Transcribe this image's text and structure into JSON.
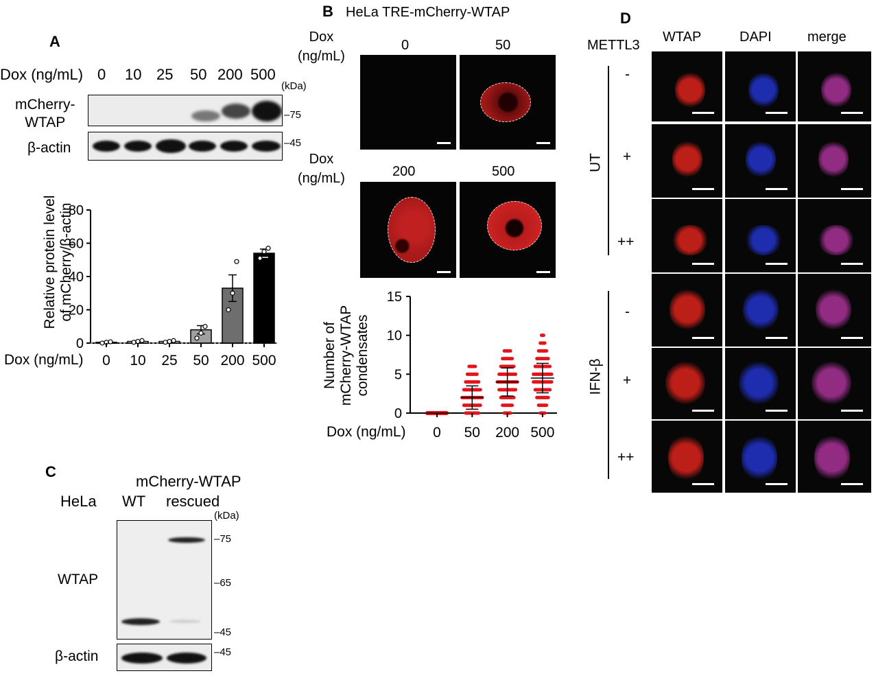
{
  "panelA": {
    "label": "A",
    "dox_label": "Dox (ng/mL)",
    "doses": [
      "0",
      "10",
      "25",
      "50",
      "200",
      "500"
    ],
    "kda_label": "(kDa)",
    "rows": [
      {
        "label": "mCherry-\nWTAP",
        "marker": "75"
      },
      {
        "label": "β-actin",
        "marker": "45"
      }
    ]
  },
  "panelB": {
    "label": "B",
    "title": "HeLa TRE-mCherry-WTAP",
    "dox_label": "Dox\n(ng/mL)",
    "tiles": [
      "0",
      "50",
      "200",
      "500"
    ],
    "dox_axis_label": "Dox (ng/mL)"
  },
  "panelC": {
    "label": "C",
    "header": "mCherry-WTAP",
    "cell_line": "HeLa",
    "lanes": [
      "WT",
      "rescued"
    ],
    "kda_label": "(kDa)",
    "markers": [
      "75",
      "65",
      "45"
    ],
    "row_labels": [
      "WTAP",
      "β-actin"
    ],
    "actin_marker": "45"
  },
  "panelD": {
    "label": "D",
    "row_header": "METTL3",
    "columns": [
      "WTAP",
      "DAPI",
      "merge"
    ],
    "groups": [
      {
        "name": "UT",
        "levels": [
          "-",
          "+",
          "++"
        ]
      },
      {
        "name": "IFN-β",
        "levels": [
          "-",
          "+",
          "++"
        ]
      }
    ],
    "colors": {
      "wtap": "#d0201a",
      "dapi": "#2030c0",
      "merge": "#a03090"
    }
  },
  "chart_data": [
    {
      "type": "bar",
      "panel": "A",
      "categories": [
        "0",
        "10",
        "25",
        "50",
        "200",
        "500"
      ],
      "values": [
        0.5,
        1,
        1,
        8,
        33,
        54
      ],
      "errors": [
        0.3,
        0.4,
        0.4,
        2.5,
        8,
        2.5
      ],
      "points": [
        [
          0,
          0.5,
          0.8
        ],
        [
          0.5,
          1,
          1.5
        ],
        [
          0.5,
          1,
          1.5
        ],
        [
          3,
          6,
          10
        ],
        [
          20,
          30,
          49
        ],
        [
          51,
          55,
          57
        ]
      ],
      "bar_colors": [
        "#ffffff",
        "#ffffff",
        "#ffffff",
        "#a0a0a0",
        "#6e6e6e",
        "#000000"
      ],
      "ylabel": "Relative protein level\nof mCherry/β-actin",
      "xlabel": "Dox (ng/mL)",
      "yticks": [
        0,
        20,
        40,
        60,
        80
      ],
      "ylim": [
        0,
        80
      ]
    },
    {
      "type": "scatter",
      "panel": "B",
      "categories": [
        "0",
        "50",
        "200",
        "500"
      ],
      "max_values": [
        0,
        6,
        8,
        10
      ],
      "means": [
        0,
        2,
        4,
        4.5
      ],
      "sd": [
        0,
        1.5,
        1.8,
        1.9
      ],
      "point_color": "#e4141b",
      "ylabel": "Number of\nmCherry-WTAP\ncondensates",
      "xlabel": "Dox (ng/mL)",
      "yticks": [
        0,
        5,
        10,
        15
      ],
      "ylim": [
        0,
        15
      ]
    }
  ]
}
